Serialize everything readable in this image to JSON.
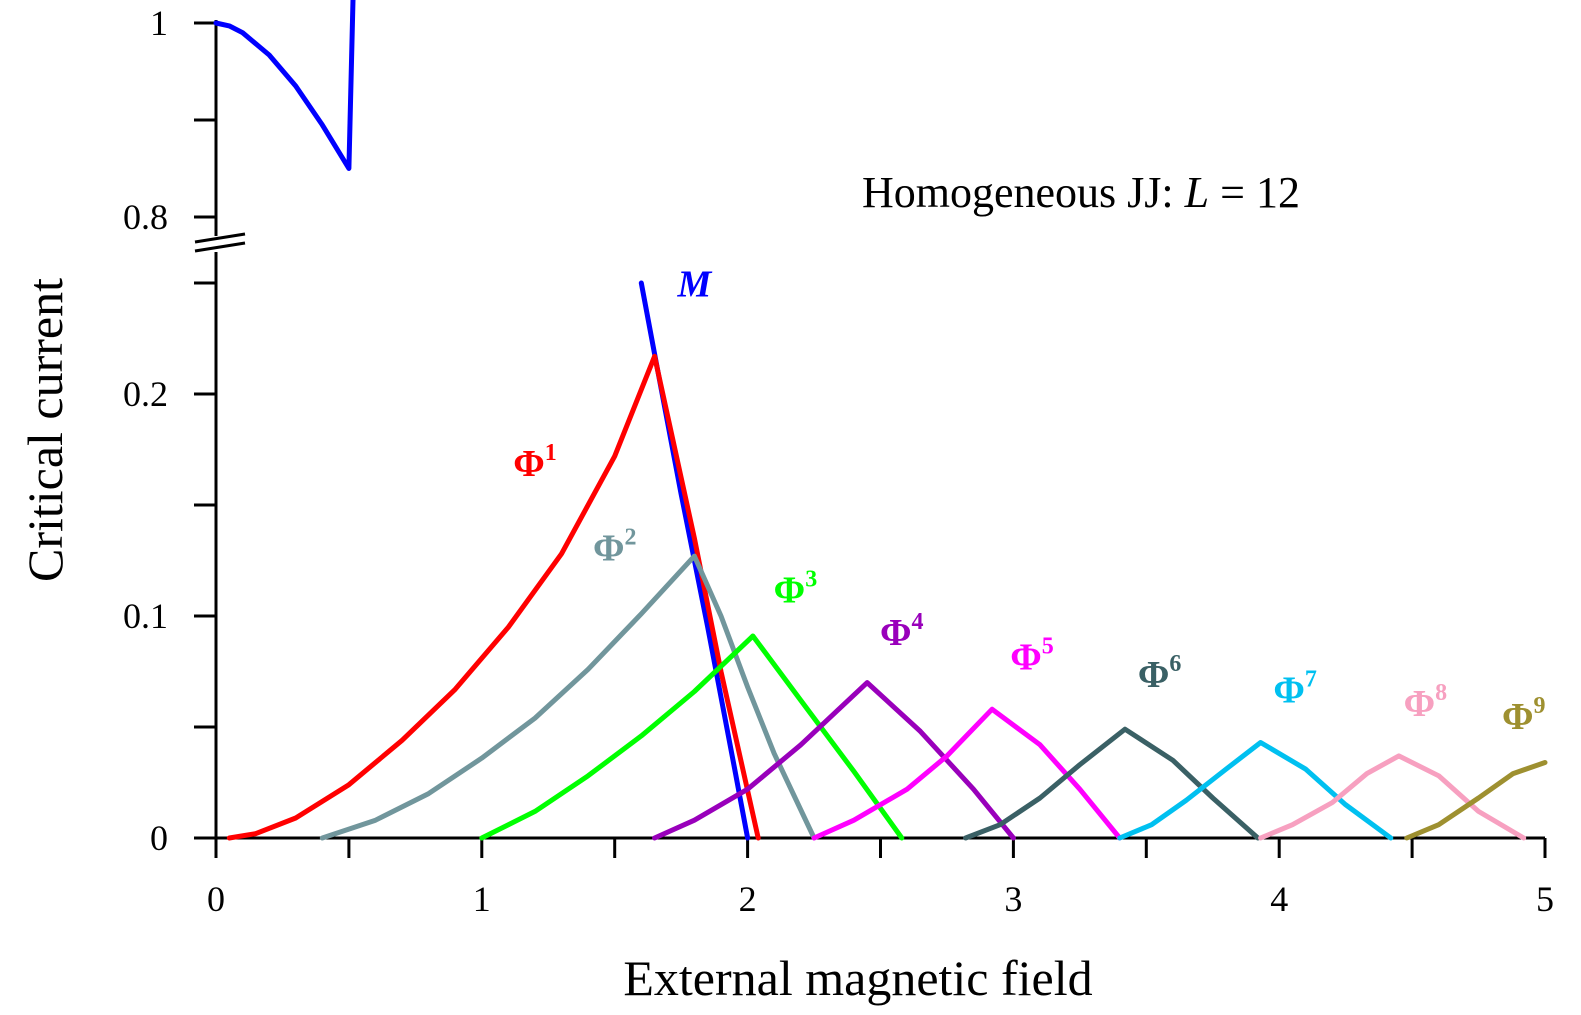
{
  "chart_data": {
    "type": "line",
    "xlabel": "External magnetic field",
    "ylabel": "Critical current",
    "annotation": {
      "text": "Homogeneous JJ: ",
      "var": "L",
      "rest": " = 12"
    },
    "xlim": [
      0,
      5
    ],
    "x_ticks": [
      0,
      1,
      2,
      3,
      4,
      5
    ],
    "x_tick_labels": [
      "0",
      "1",
      "2",
      "3",
      "4",
      "5"
    ],
    "y_lower_range": [
      0,
      0.25
    ],
    "y_upper_range": [
      0.8,
      1.0
    ],
    "y_ticks_lower": [
      0,
      0.1,
      0.2
    ],
    "y_tick_labels_lower": [
      "0",
      "0.1",
      "0.2"
    ],
    "y_ticks_upper": [
      0.8,
      1
    ],
    "y_tick_labels_upper": [
      "0.8",
      "1"
    ],
    "axis_break": true,
    "grid": false,
    "series": [
      {
        "label": "M",
        "label_style": "italic",
        "color": "#0000ff",
        "segments": [
          [
            [
              0,
              1.0
            ],
            [
              0.05,
              0.997
            ],
            [
              0.1,
              0.99
            ],
            [
              0.2,
              0.967
            ],
            [
              0.3,
              0.935
            ],
            [
              0.4,
              0.895
            ],
            [
              0.5,
              0.85
            ],
            [
              0.6,
              0.795
            ]
          ],
          [
            [
              1.6,
              0.25
            ],
            [
              1.65,
              0.218
            ],
            [
              1.75,
              0.155
            ],
            [
              1.85,
              0.095
            ],
            [
              1.95,
              0.032
            ],
            [
              2.0,
              0.0
            ]
          ]
        ],
        "label_pos": [
          1.8,
          0.244
        ]
      },
      {
        "label": "Φ",
        "sup": "1",
        "color": "#ff0000",
        "points": [
          [
            0.05,
            0.0
          ],
          [
            0.15,
            0.002
          ],
          [
            0.3,
            0.009
          ],
          [
            0.5,
            0.024
          ],
          [
            0.7,
            0.044
          ],
          [
            0.9,
            0.067
          ],
          [
            1.1,
            0.095
          ],
          [
            1.3,
            0.128
          ],
          [
            1.5,
            0.172
          ],
          [
            1.65,
            0.217
          ],
          [
            1.8,
            0.135
          ],
          [
            1.9,
            0.075
          ],
          [
            2.04,
            0.0
          ]
        ],
        "label_pos": [
          1.2,
          0.163
        ]
      },
      {
        "label": "Φ",
        "sup": "2",
        "color": "#71969c",
        "points": [
          [
            0.4,
            0.0
          ],
          [
            0.6,
            0.008
          ],
          [
            0.8,
            0.02
          ],
          [
            1.0,
            0.036
          ],
          [
            1.2,
            0.054
          ],
          [
            1.4,
            0.076
          ],
          [
            1.6,
            0.101
          ],
          [
            1.8,
            0.127
          ],
          [
            1.9,
            0.1
          ],
          [
            2.0,
            0.068
          ],
          [
            2.1,
            0.038
          ],
          [
            2.25,
            0.0
          ]
        ],
        "label_pos": [
          1.5,
          0.125
        ]
      },
      {
        "label": "Φ",
        "sup": "3",
        "color": "#00ff00",
        "points": [
          [
            1.0,
            0.0
          ],
          [
            1.2,
            0.012
          ],
          [
            1.4,
            0.028
          ],
          [
            1.6,
            0.046
          ],
          [
            1.8,
            0.066
          ],
          [
            2.02,
            0.091
          ],
          [
            2.2,
            0.062
          ],
          [
            2.4,
            0.03
          ],
          [
            2.58,
            0.0
          ]
        ],
        "label_pos": [
          2.18,
          0.106
        ]
      },
      {
        "label": "Φ",
        "sup": "4",
        "color": "#9900bb",
        "points": [
          [
            1.65,
            0.0
          ],
          [
            1.8,
            0.008
          ],
          [
            2.0,
            0.022
          ],
          [
            2.2,
            0.042
          ],
          [
            2.45,
            0.07
          ],
          [
            2.65,
            0.048
          ],
          [
            2.85,
            0.022
          ],
          [
            3.0,
            0.0
          ]
        ],
        "label_pos": [
          2.58,
          0.087
        ]
      },
      {
        "label": "Φ",
        "sup": "5",
        "color": "#ff00ff",
        "points": [
          [
            2.25,
            0.0
          ],
          [
            2.4,
            0.008
          ],
          [
            2.6,
            0.022
          ],
          [
            2.75,
            0.037
          ],
          [
            2.92,
            0.058
          ],
          [
            3.1,
            0.042
          ],
          [
            3.25,
            0.022
          ],
          [
            3.4,
            0.0
          ]
        ],
        "label_pos": [
          3.07,
          0.076
        ]
      },
      {
        "label": "Φ",
        "sup": "6",
        "color": "#3a6065",
        "points": [
          [
            2.82,
            0.0
          ],
          [
            2.95,
            0.006
          ],
          [
            3.1,
            0.018
          ],
          [
            3.25,
            0.033
          ],
          [
            3.42,
            0.049
          ],
          [
            3.6,
            0.035
          ],
          [
            3.75,
            0.018
          ],
          [
            3.92,
            0.0
          ]
        ],
        "label_pos": [
          3.55,
          0.068
        ]
      },
      {
        "label": "Φ",
        "sup": "7",
        "color": "#00c0f0",
        "points": [
          [
            3.4,
            0.0
          ],
          [
            3.52,
            0.006
          ],
          [
            3.65,
            0.017
          ],
          [
            3.8,
            0.031
          ],
          [
            3.93,
            0.043
          ],
          [
            4.1,
            0.031
          ],
          [
            4.25,
            0.015
          ],
          [
            4.42,
            0.0
          ]
        ],
        "label_pos": [
          4.06,
          0.061
        ]
      },
      {
        "label": "Φ",
        "sup": "8",
        "color": "#f7a0c0",
        "points": [
          [
            3.93,
            0.0
          ],
          [
            4.05,
            0.006
          ],
          [
            4.2,
            0.016
          ],
          [
            4.33,
            0.029
          ],
          [
            4.45,
            0.037
          ],
          [
            4.6,
            0.028
          ],
          [
            4.75,
            0.012
          ],
          [
            4.92,
            0.0
          ]
        ],
        "label_pos": [
          4.55,
          0.055
        ]
      },
      {
        "label": "Φ",
        "sup": "9",
        "color": "#9e9030",
        "points": [
          [
            4.48,
            0.0
          ],
          [
            4.6,
            0.006
          ],
          [
            4.75,
            0.018
          ],
          [
            4.88,
            0.029
          ],
          [
            5.0,
            0.034
          ]
        ],
        "label_pos": [
          4.92,
          0.049
        ]
      }
    ]
  }
}
